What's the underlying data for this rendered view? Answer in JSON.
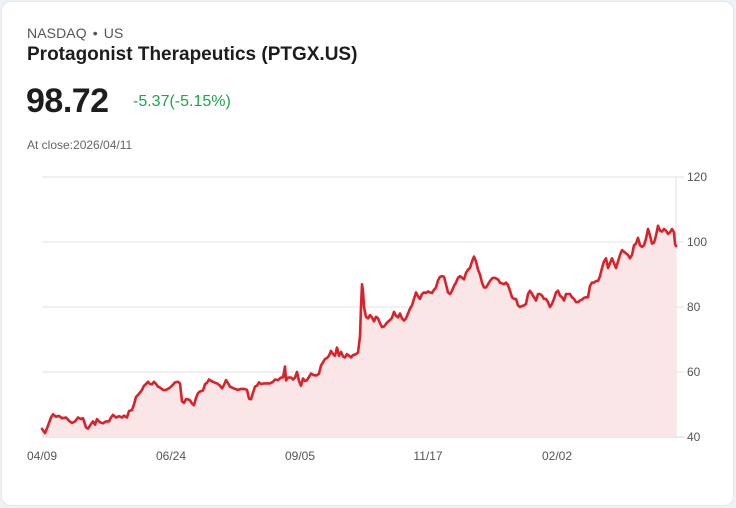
{
  "header": {
    "exchange": "NASDAQ",
    "separator": "•",
    "country": "US",
    "title": "Protagonist Therapeutics (PTGX.US)"
  },
  "quote": {
    "price": "98.72",
    "change": "-5.37(-5.15%)",
    "change_color": "#1ea54c",
    "close_label": "At close:2026/04/11"
  },
  "colors": {
    "line": "#d9222a",
    "fill": "#fbe6e7",
    "grid": "#e2e2e2"
  },
  "chart_data": {
    "type": "area",
    "title": "Protagonist Therapeutics (PTGX.US)",
    "xlabel": "",
    "ylabel": "",
    "ylim": [
      40,
      120
    ],
    "yticks": [
      40,
      60,
      80,
      100,
      120
    ],
    "xtick_labels": [
      "04/09",
      "06/24",
      "09/05",
      "11/17",
      "02/02"
    ],
    "grid": true,
    "legend": null,
    "points": [
      [
        42,
        42.5
      ],
      [
        45,
        41.2
      ],
      [
        48,
        43.5
      ],
      [
        51,
        46
      ],
      [
        53,
        47
      ],
      [
        56,
        46.2
      ],
      [
        59,
        46.5
      ],
      [
        62,
        45.8
      ],
      [
        66,
        46
      ],
      [
        69,
        45
      ],
      [
        72,
        44.3
      ],
      [
        75,
        44.8
      ],
      [
        78,
        46
      ],
      [
        81,
        45.5
      ],
      [
        83,
        45.8
      ],
      [
        86,
        43
      ],
      [
        88,
        42.6
      ],
      [
        91,
        44
      ],
      [
        93,
        44.8
      ],
      [
        95,
        43.8
      ],
      [
        97,
        45.5
      ],
      [
        100,
        44.5
      ],
      [
        103,
        44.2
      ],
      [
        106,
        44.8
      ],
      [
        109,
        44.8
      ],
      [
        111,
        46
      ],
      [
        113,
        46.8
      ],
      [
        116,
        46
      ],
      [
        119,
        46.4
      ],
      [
        122,
        46
      ],
      [
        124,
        46.6
      ],
      [
        127,
        46
      ],
      [
        129,
        48
      ],
      [
        132,
        48.3
      ],
      [
        134,
        50
      ],
      [
        136,
        52.3
      ],
      [
        139,
        53.3
      ],
      [
        142,
        54.5
      ],
      [
        144,
        55.8
      ],
      [
        146,
        56.3
      ],
      [
        148,
        57
      ],
      [
        150,
        56.3
      ],
      [
        152,
        56.2
      ],
      [
        154,
        57
      ],
      [
        156,
        56.3
      ],
      [
        158,
        55.5
      ],
      [
        160,
        55.2
      ],
      [
        163,
        54.5
      ],
      [
        166,
        54.5
      ],
      [
        169,
        55
      ],
      [
        172,
        55.8
      ],
      [
        175,
        56.8
      ],
      [
        178,
        57
      ],
      [
        180,
        56.5
      ],
      [
        182,
        51
      ],
      [
        184,
        50.5
      ],
      [
        186,
        51.7
      ],
      [
        188,
        51.6
      ],
      [
        190,
        51.3
      ],
      [
        192,
        50.3
      ],
      [
        194,
        49.8
      ],
      [
        196,
        52
      ],
      [
        198,
        53.5
      ],
      [
        200,
        54
      ],
      [
        203,
        54.3
      ],
      [
        205,
        56.2
      ],
      [
        207,
        56.7
      ],
      [
        209,
        57.7
      ],
      [
        211,
        57.3
      ],
      [
        213,
        57
      ],
      [
        215,
        56.7
      ],
      [
        217,
        56.5
      ],
      [
        220,
        55.8
      ],
      [
        222,
        55
      ],
      [
        224,
        56
      ],
      [
        226,
        57.5
      ],
      [
        228,
        56.6
      ],
      [
        230,
        55.5
      ],
      [
        232,
        55.2
      ],
      [
        235,
        54.8
      ],
      [
        238,
        54.5
      ],
      [
        241,
        54.8
      ],
      [
        244,
        54.8
      ],
      [
        247,
        54.5
      ],
      [
        249,
        51.8
      ],
      [
        251,
        51.6
      ],
      [
        253,
        53.6
      ],
      [
        255,
        55.5
      ],
      [
        257,
        55.8
      ],
      [
        259,
        56.8
      ],
      [
        261,
        56.3
      ],
      [
        264,
        56.5
      ],
      [
        267,
        56.5
      ],
      [
        270,
        56.5
      ],
      [
        273,
        57
      ],
      [
        275,
        57.7
      ],
      [
        278,
        57.5
      ],
      [
        281,
        58.3
      ],
      [
        283,
        58.3
      ],
      [
        285,
        61.7
      ],
      [
        286,
        57.4
      ],
      [
        288,
        58.3
      ],
      [
        291,
        58.3
      ],
      [
        293,
        57.7
      ],
      [
        295,
        58.3
      ],
      [
        297,
        60
      ],
      [
        299,
        57.2
      ],
      [
        301,
        55.8
      ],
      [
        303,
        58
      ],
      [
        305,
        57.2
      ],
      [
        307,
        57.5
      ],
      [
        309,
        58.5
      ],
      [
        311,
        59.5
      ],
      [
        314,
        59
      ],
      [
        317,
        59
      ],
      [
        319,
        59.5
      ],
      [
        321,
        62
      ],
      [
        323,
        63
      ],
      [
        325,
        64
      ],
      [
        327,
        64.3
      ],
      [
        329,
        65
      ],
      [
        331,
        66.5
      ],
      [
        333,
        65.5
      ],
      [
        335,
        65
      ],
      [
        337,
        67.5
      ],
      [
        339,
        65
      ],
      [
        341,
        66.2
      ],
      [
        343,
        64.8
      ],
      [
        345,
        64.5
      ],
      [
        347,
        65.5
      ],
      [
        349,
        65
      ],
      [
        351,
        64.5
      ],
      [
        353,
        65.2
      ],
      [
        356,
        65.5
      ],
      [
        358,
        66
      ],
      [
        360,
        71
      ],
      [
        361,
        80
      ],
      [
        362,
        87
      ],
      [
        363,
        85
      ],
      [
        364,
        80
      ],
      [
        366,
        77
      ],
      [
        368,
        76.5
      ],
      [
        370,
        77.5
      ],
      [
        372,
        76.8
      ],
      [
        374,
        75.6
      ],
      [
        376,
        77
      ],
      [
        378,
        76.5
      ],
      [
        380,
        75
      ],
      [
        382,
        73.8
      ],
      [
        384,
        74
      ],
      [
        386,
        74.8
      ],
      [
        388,
        75.5
      ],
      [
        390,
        76
      ],
      [
        392,
        76.7
      ],
      [
        394,
        78.5
      ],
      [
        396,
        77.3
      ],
      [
        398,
        76.8
      ],
      [
        400,
        78
      ],
      [
        402,
        76.5
      ],
      [
        404,
        75.8
      ],
      [
        406,
        76.5
      ],
      [
        408,
        78
      ],
      [
        410,
        79.5
      ],
      [
        412,
        80.5
      ],
      [
        414,
        82.5
      ],
      [
        416,
        84.5
      ],
      [
        418,
        83.3
      ],
      [
        420,
        82.5
      ],
      [
        422,
        84
      ],
      [
        424,
        84.5
      ],
      [
        426,
        84.3
      ],
      [
        428,
        84.8
      ],
      [
        430,
        84.5
      ],
      [
        432,
        84.3
      ],
      [
        434,
        85.3
      ],
      [
        436,
        86
      ],
      [
        438,
        88.2
      ],
      [
        440,
        89.3
      ],
      [
        442,
        89.5
      ],
      [
        444,
        89.3
      ],
      [
        446,
        87
      ],
      [
        448,
        84.5
      ],
      [
        450,
        84
      ],
      [
        452,
        85
      ],
      [
        454,
        86.5
      ],
      [
        456,
        87.5
      ],
      [
        458,
        89
      ],
      [
        460,
        89.5
      ],
      [
        462,
        89
      ],
      [
        464,
        88.5
      ],
      [
        466,
        90.5
      ],
      [
        468,
        91.5
      ],
      [
        470,
        92
      ],
      [
        472,
        94
      ],
      [
        474,
        95.5
      ],
      [
        476,
        94
      ],
      [
        478,
        91.5
      ],
      [
        480,
        90
      ],
      [
        482,
        87.5
      ],
      [
        484,
        86
      ],
      [
        486,
        86
      ],
      [
        488,
        87
      ],
      [
        490,
        88
      ],
      [
        492,
        88.8
      ],
      [
        494,
        89
      ],
      [
        496,
        88.8
      ],
      [
        498,
        88.5
      ],
      [
        500,
        87.5
      ],
      [
        502,
        87.3
      ],
      [
        504,
        87
      ],
      [
        506,
        87.5
      ],
      [
        508,
        86.8
      ],
      [
        510,
        85
      ],
      [
        512,
        83
      ],
      [
        514,
        82.5
      ],
      [
        516,
        82.5
      ],
      [
        518,
        80.5
      ],
      [
        520,
        80
      ],
      [
        522,
        80.3
      ],
      [
        524,
        80.5
      ],
      [
        526,
        81
      ],
      [
        528,
        84
      ],
      [
        530,
        85
      ],
      [
        532,
        84
      ],
      [
        534,
        83
      ],
      [
        536,
        82
      ],
      [
        538,
        84
      ],
      [
        540,
        84
      ],
      [
        542,
        83.5
      ],
      [
        544,
        82.5
      ],
      [
        546,
        82.5
      ],
      [
        548,
        81.5
      ],
      [
        550,
        80
      ],
      [
        552,
        81
      ],
      [
        554,
        82.5
      ],
      [
        556,
        84.5
      ],
      [
        558,
        85
      ],
      [
        560,
        83.5
      ],
      [
        562,
        83
      ],
      [
        564,
        82
      ],
      [
        566,
        84
      ],
      [
        568,
        84
      ],
      [
        570,
        84
      ],
      [
        572,
        83
      ],
      [
        574,
        82.5
      ],
      [
        576,
        81.5
      ],
      [
        578,
        81.5
      ],
      [
        580,
        82
      ],
      [
        582,
        82.3
      ],
      [
        584,
        82.8
      ],
      [
        586,
        83
      ],
      [
        588,
        83
      ],
      [
        590,
        86.5
      ],
      [
        592,
        87.5
      ],
      [
        594,
        87.5
      ],
      [
        596,
        88
      ],
      [
        598,
        88
      ],
      [
        600,
        89.5
      ],
      [
        602,
        92
      ],
      [
        604,
        94
      ],
      [
        606,
        95
      ],
      [
        608,
        92
      ],
      [
        610,
        93.5
      ],
      [
        612,
        95
      ],
      [
        614,
        93.5
      ],
      [
        616,
        92
      ],
      [
        618,
        94
      ],
      [
        620,
        96
      ],
      [
        622,
        97.5
      ],
      [
        624,
        97
      ],
      [
        626,
        96.5
      ],
      [
        628,
        96
      ],
      [
        630,
        95
      ],
      [
        632,
        96
      ],
      [
        634,
        99
      ],
      [
        636,
        99.5
      ],
      [
        638,
        101.3
      ],
      [
        640,
        99
      ],
      [
        642,
        98.5
      ],
      [
        644,
        99
      ],
      [
        646,
        101
      ],
      [
        648,
        104
      ],
      [
        650,
        102
      ],
      [
        652,
        99.5
      ],
      [
        654,
        99.8
      ],
      [
        656,
        102
      ],
      [
        658,
        105
      ],
      [
        660,
        103.5
      ],
      [
        662,
        103.2
      ],
      [
        664,
        104
      ],
      [
        666,
        103.5
      ],
      [
        668,
        102.5
      ],
      [
        670,
        103
      ],
      [
        672,
        104
      ],
      [
        674,
        103
      ],
      [
        675,
        99.5
      ],
      [
        676,
        98.7
      ]
    ]
  }
}
